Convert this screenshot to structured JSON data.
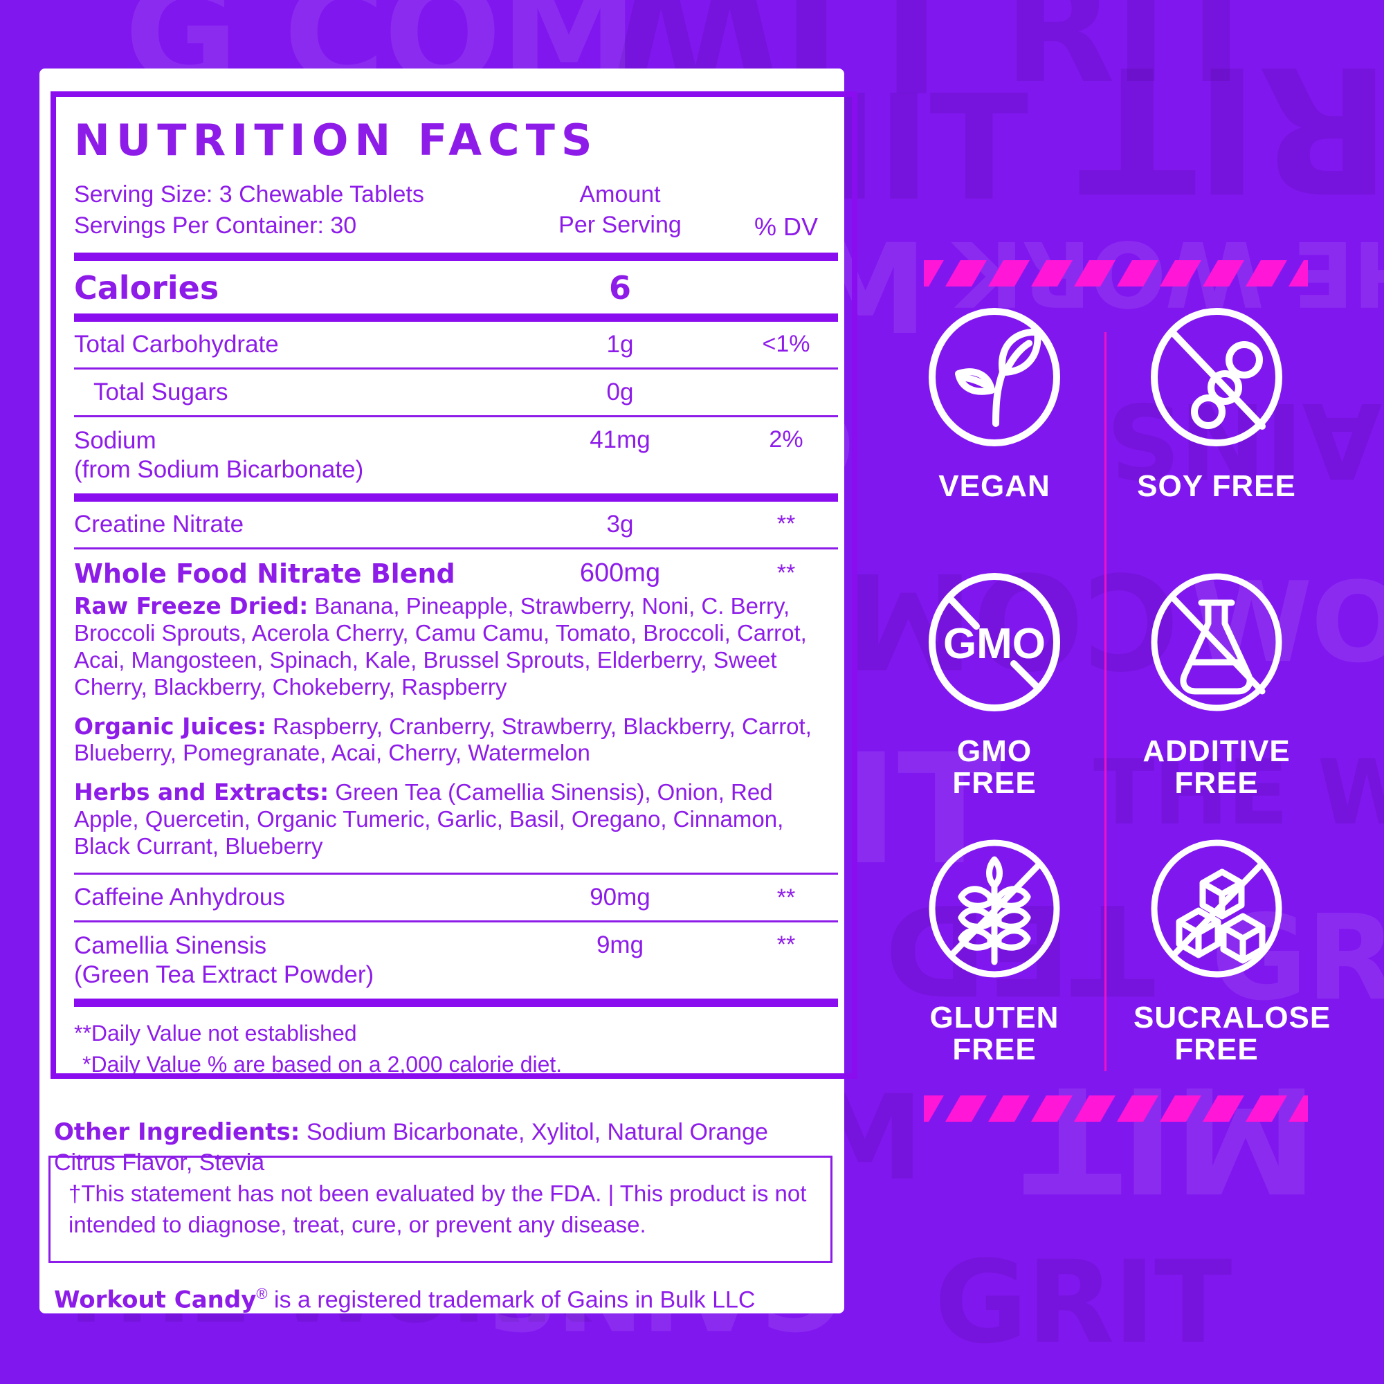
{
  "colors": {
    "background_purple": "#8117EF",
    "text_purple": "#8E1CE9",
    "rule_purple": "#8A0DF0",
    "magenta_accent": "#FF16D6",
    "card_white": "#FFFFFF"
  },
  "nutrition_label": {
    "title": "NUTRITION FACTS",
    "serving_size": "Serving Size: 3 Chewable Tablets",
    "servings_per_container": "Servings Per Container: 30",
    "amount_header_line1": "Amount",
    "amount_header_line2": "Per Serving",
    "dv_header": "% DV",
    "calories_label": "Calories",
    "calories_value": "6",
    "rows": [
      {
        "name": "Total Carbohydrate",
        "amount": "1g",
        "dv": "<1%"
      },
      {
        "name": "Total Sugars",
        "amount": "0g",
        "dv": ""
      },
      {
        "name": "Sodium",
        "name_line2": "(from Sodium Bicarbonate)",
        "amount": "41mg",
        "dv": "2%"
      },
      {
        "name": "Creatine Nitrate",
        "amount": "3g",
        "dv": "**"
      }
    ],
    "blend": {
      "name": "Whole Food Nitrate Blend",
      "amount": "600mg",
      "dv": "**",
      "raw_freeze_dried_label": "Raw Freeze Dried:",
      "raw_freeze_dried": " Banana, Pineapple, Strawberry, Noni, C. Berry, Broccoli Sprouts, Acerola Cherry, Camu Camu, Tomato, Broccoli, Carrot, Acai, Mangosteen, Spinach, Kale, Brussel Sprouts, Elderberry, Sweet Cherry, Blackberry, Chokeberry, Raspberry",
      "organic_juices_label": "Organic Juices:",
      "organic_juices": " Raspberry, Cranberry, Strawberry, Blackberry, Carrot, Blueberry, Pomegranate, Acai, Cherry, Watermelon",
      "herbs_label": "Herbs and Extracts:",
      "herbs": " Green Tea (Camellia Sinensis), Onion, Red Apple, Quercetin, Organic Tumeric, Garlic, Basil, Oregano, Cinnamon, Black Currant, Blueberry"
    },
    "rows2": [
      {
        "name": "Caffeine Anhydrous",
        "amount": "90mg",
        "dv": "**"
      },
      {
        "name": "Camellia Sinensis",
        "name_line2": "(Green Tea Extract Powder)",
        "amount": "9mg",
        "dv": "**"
      }
    ],
    "footnote1": "**Daily Value not established",
    "footnote2": "*Daily Value % are based on a 2,000 calorie diet.",
    "other_ingredients_label": "Other Ingredients:",
    "other_ingredients": " Sodium Bicarbonate, Xylitol, Natural Orange Citrus Flavor, Stevia",
    "fda_statement": "†This statement has not been evaluated by the FDA. | This product is not intended to diagnose, treat, cure, or prevent any disease.",
    "trademark_name": "Workout Candy",
    "trademark_symbol": "®",
    "trademark_rest": " is a registered trademark of Gains in Bulk LLC"
  },
  "badges": [
    {
      "label_line1": "VEGAN",
      "label_line2": "",
      "icon": "plant-icon"
    },
    {
      "label_line1": "SOY FREE",
      "label_line2": "",
      "icon": "soybean-crossed-icon"
    },
    {
      "label_line1": "GMO FREE",
      "label_line2": "",
      "icon": "gmo-crossed-icon",
      "icon_text": "GMO"
    },
    {
      "label_line1": "ADDITIVE",
      "label_line2": "FREE",
      "icon": "flask-crossed-icon"
    },
    {
      "label_line1": "GLUTEN",
      "label_line2": "FREE",
      "icon": "wheat-crossed-icon"
    },
    {
      "label_line1": "SUCRALOSE",
      "label_line2": "FREE",
      "icon": "sugar-cubes-crossed-icon"
    }
  ],
  "background_pattern_words": [
    "G COM",
    "GAINS",
    "MIT",
    "TED",
    "THE WORK",
    "GRIT",
    "WOD",
    "COM",
    "LIW",
    "RIT"
  ]
}
